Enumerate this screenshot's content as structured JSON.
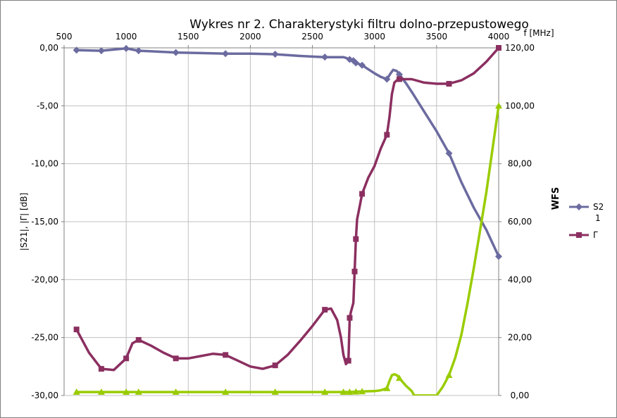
{
  "chart_data": {
    "type": "line",
    "title": "Wykres nr 2. Charakterystyki filtru dolno-przepustowego",
    "xlabel": "f [MHz]",
    "ylabel": "|S21|, |Γ| [dB]",
    "y2label": "WFS",
    "xlim": [
      500,
      4000
    ],
    "ylim": [
      -30,
      0
    ],
    "y2lim": [
      0,
      120
    ],
    "x_ticks": [
      "500",
      "1000",
      "1500",
      "2000",
      "2500",
      "3000",
      "3500",
      "4000"
    ],
    "y_ticks": [
      "0,00",
      "-5,00",
      "-10,00",
      "-15,00",
      "-20,00",
      "-25,00",
      "-30,00"
    ],
    "y2_ticks": [
      "120,00",
      "100,00",
      "80,00",
      "60,00",
      "40,00",
      "20,00",
      "0,00"
    ],
    "grid": true,
    "legend_position": "right",
    "legend": [
      {
        "label": "S2",
        "label2": "1",
        "color": "#6b6ba0",
        "marker": "diamond"
      },
      {
        "label": "Γ",
        "color": "#8b2f60",
        "marker": "square"
      }
    ],
    "series": [
      {
        "name": "S21",
        "axis": "left",
        "color": "#6b6ba0",
        "marker": "diamond",
        "x": [
          600,
          800,
          1000,
          1100,
          1200,
          1400,
          1600,
          1800,
          2000,
          2200,
          2400,
          2600,
          2750,
          2780,
          2800,
          2830,
          2850,
          2900,
          3000,
          3050,
          3100,
          3130,
          3150,
          3180,
          3200,
          3250,
          3300,
          3400,
          3500,
          3600,
          3700,
          3800,
          3900,
          4000
        ],
        "y": [
          -0.2,
          -0.25,
          -0.05,
          -0.25,
          -0.3,
          -0.4,
          -0.45,
          -0.5,
          -0.5,
          -0.55,
          -0.7,
          -0.8,
          -0.8,
          -0.9,
          -1.0,
          -1.1,
          -1.3,
          -1.5,
          -2.2,
          -2.5,
          -2.7,
          -2.2,
          -1.9,
          -2.0,
          -2.3,
          -3.0,
          -3.8,
          -5.5,
          -7.2,
          -9.1,
          -11.6,
          -13.8,
          -15.7,
          -18.0
        ],
        "markers_x": [
          600,
          800,
          1000,
          1100,
          1400,
          1800,
          2200,
          2600,
          2800,
          2830,
          2850,
          2900,
          3100,
          3200,
          3600,
          4000
        ]
      },
      {
        "name": "Γ",
        "axis": "left",
        "color": "#8b2f60",
        "marker": "square",
        "x": [
          600,
          700,
          800,
          900,
          1000,
          1050,
          1100,
          1200,
          1300,
          1400,
          1500,
          1600,
          1700,
          1800,
          1900,
          2000,
          2100,
          2200,
          2300,
          2400,
          2500,
          2550,
          2600,
          2650,
          2700,
          2730,
          2750,
          2770,
          2790,
          2800,
          2810,
          2830,
          2840,
          2850,
          2860,
          2880,
          2900,
          2950,
          3000,
          3050,
          3100,
          3120,
          3140,
          3160,
          3180,
          3200,
          3300,
          3400,
          3500,
          3600,
          3700,
          3800,
          3900,
          4000
        ],
        "y": [
          -24.3,
          -26.3,
          -27.7,
          -27.8,
          -26.8,
          -25.5,
          -25.2,
          -25.7,
          -26.3,
          -26.8,
          -26.8,
          -26.6,
          -26.4,
          -26.5,
          -27.0,
          -27.5,
          -27.7,
          -27.4,
          -26.5,
          -25.3,
          -24.0,
          -23.3,
          -22.6,
          -22.5,
          -23.5,
          -25.0,
          -26.5,
          -27.3,
          -27.0,
          -23.3,
          -22.8,
          -22.0,
          -19.3,
          -16.5,
          -14.8,
          -13.7,
          -12.6,
          -11.2,
          -10.2,
          -8.7,
          -7.5,
          -6.0,
          -4.0,
          -3.0,
          -2.8,
          -2.7,
          -2.7,
          -3.0,
          -3.1,
          -3.1,
          -2.8,
          -2.2,
          -1.2,
          0.0
        ],
        "markers_x": [
          600,
          800,
          1000,
          1100,
          1400,
          1800,
          2200,
          2600,
          2790,
          2800,
          2840,
          2850,
          2900,
          3100,
          3200,
          3600,
          4000
        ]
      },
      {
        "name": "WFS",
        "axis": "right",
        "color": "#99cc00",
        "marker": "triangle",
        "x": [
          600,
          800,
          1000,
          1100,
          1400,
          1800,
          2200,
          2600,
          2750,
          2800,
          2850,
          2900,
          3000,
          3050,
          3100,
          3120,
          3140,
          3160,
          3180,
          3200,
          3250,
          3300,
          3320,
          3500,
          3550,
          3600,
          3650,
          3700,
          3750,
          3800,
          3850,
          3900,
          3950,
          4000
        ],
        "y": [
          1.2,
          1.2,
          1.2,
          1.2,
          1.2,
          1.2,
          1.2,
          1.2,
          1.2,
          1.2,
          1.3,
          1.4,
          1.5,
          1.8,
          2.5,
          5.0,
          7.0,
          7.3,
          7.0,
          6.0,
          3.5,
          1.5,
          0.0,
          0.0,
          3.0,
          7.0,
          13.0,
          21.0,
          32.0,
          44.0,
          57.0,
          70.0,
          85.0,
          100.0
        ],
        "markers_x": [
          600,
          800,
          1000,
          1100,
          1400,
          1800,
          2200,
          2600,
          2750,
          2800,
          2850,
          2900,
          3100,
          3200,
          3600,
          4000
        ]
      }
    ]
  }
}
